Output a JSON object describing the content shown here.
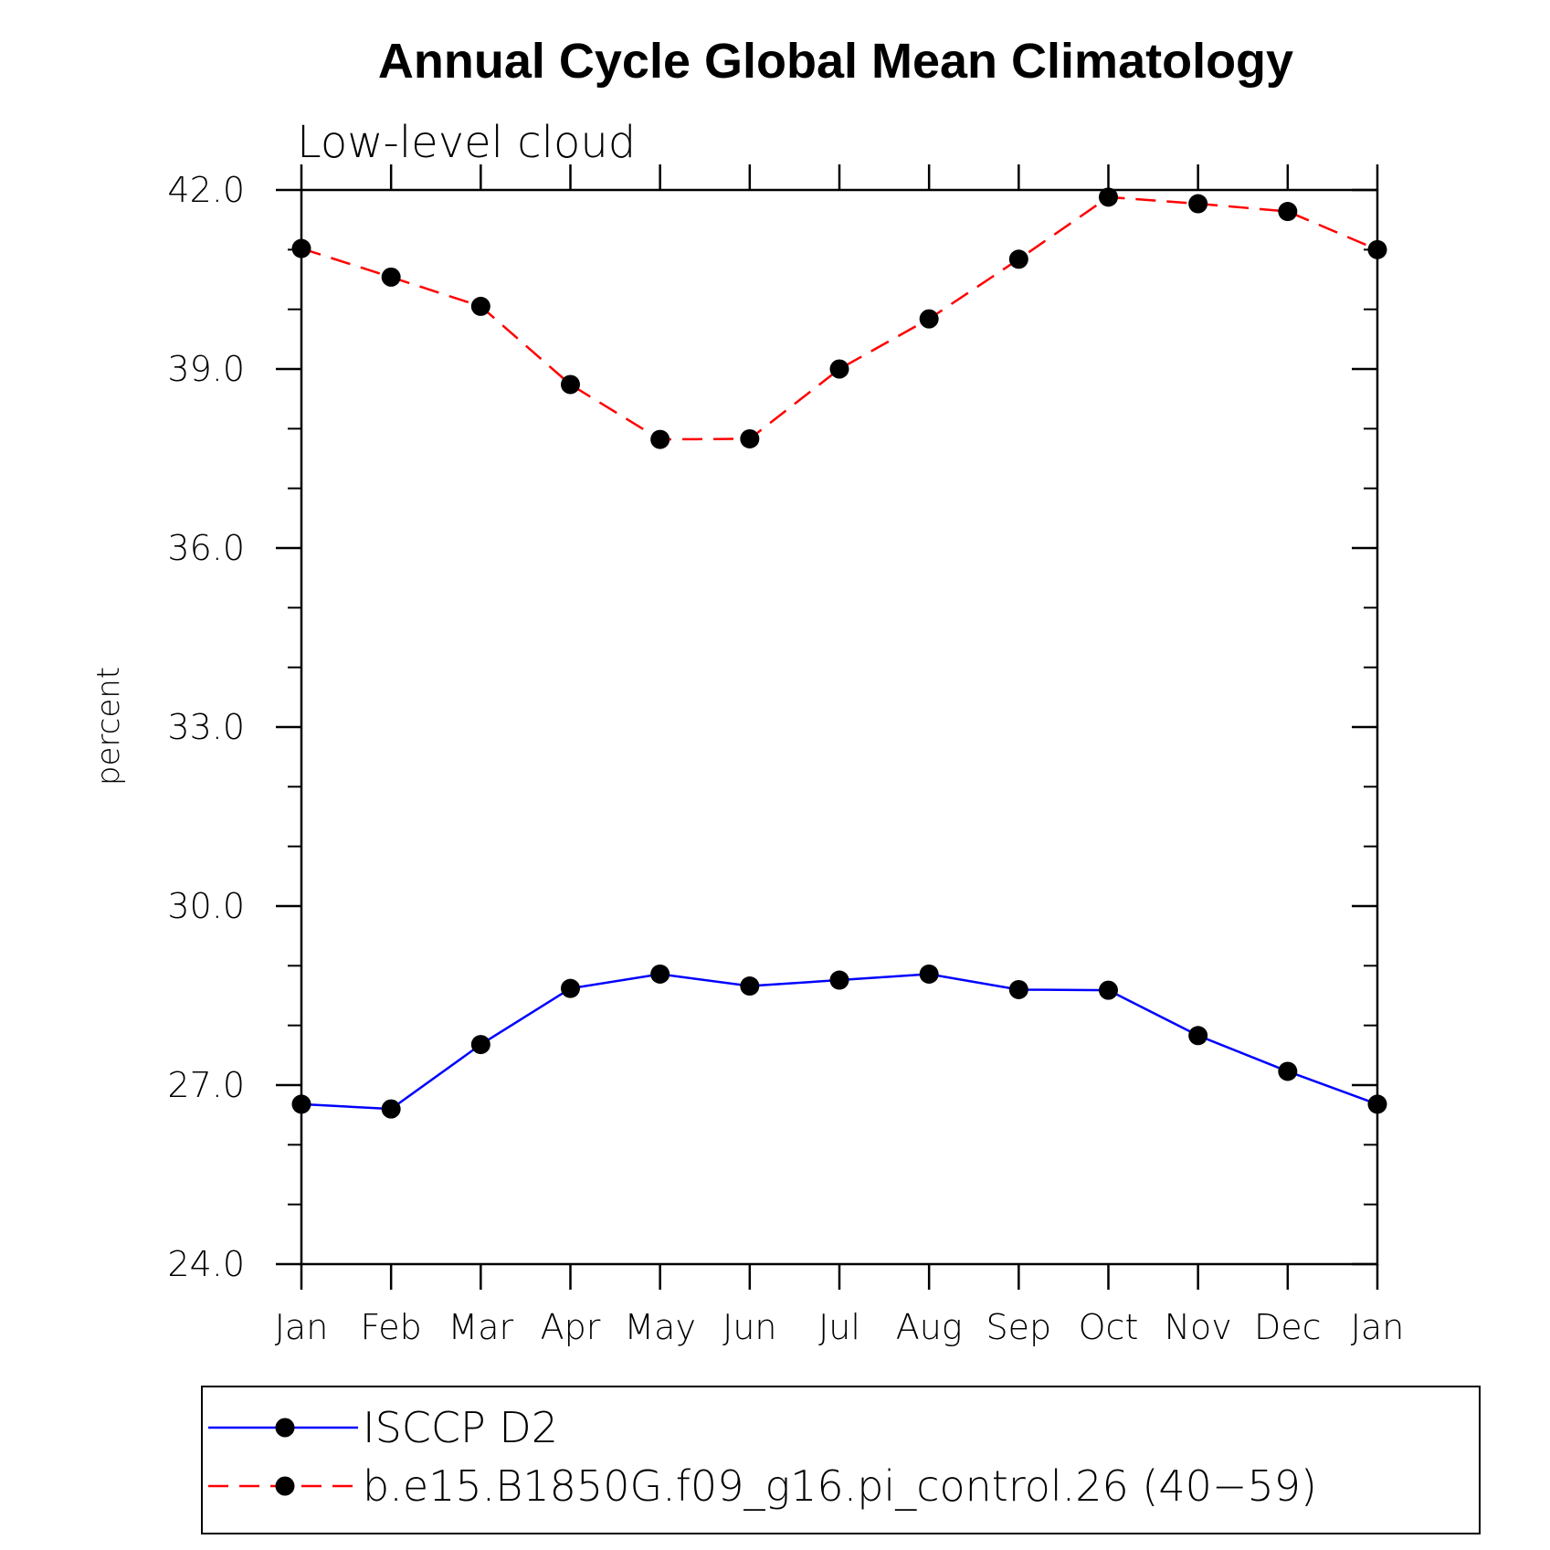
{
  "chart_data": {
    "type": "line",
    "title": "Annual Cycle Global Mean Climatology",
    "subtitle": "Low-level cloud",
    "ylabel": "percent",
    "xlabel": "",
    "categories": [
      "Jan",
      "Feb",
      "Mar",
      "Apr",
      "May",
      "Jun",
      "Jul",
      "Aug",
      "Sep",
      "Oct",
      "Nov",
      "Dec",
      "Jan"
    ],
    "ylim": [
      24.0,
      42.0
    ],
    "yticks": [
      "24.0",
      "27.0",
      "30.0",
      "33.0",
      "36.0",
      "39.0",
      "42.0"
    ],
    "grid": false,
    "legend_position": "bottom",
    "series": [
      {
        "name": "ISCCP D2",
        "color": "#0000ff",
        "dash": "solid",
        "values": [
          26.68,
          26.6,
          27.68,
          28.62,
          28.86,
          28.66,
          28.76,
          28.86,
          28.6,
          28.59,
          27.83,
          27.23,
          26.68
        ]
      },
      {
        "name": "b.e15.B1850G.f09_g16.pi_control.26 (40−59)",
        "color": "#ff0000",
        "dash": "dashed",
        "values": [
          41.02,
          40.54,
          40.05,
          38.74,
          37.82,
          37.83,
          39.0,
          39.84,
          40.84,
          41.88,
          41.77,
          41.64,
          41.0
        ]
      }
    ]
  }
}
